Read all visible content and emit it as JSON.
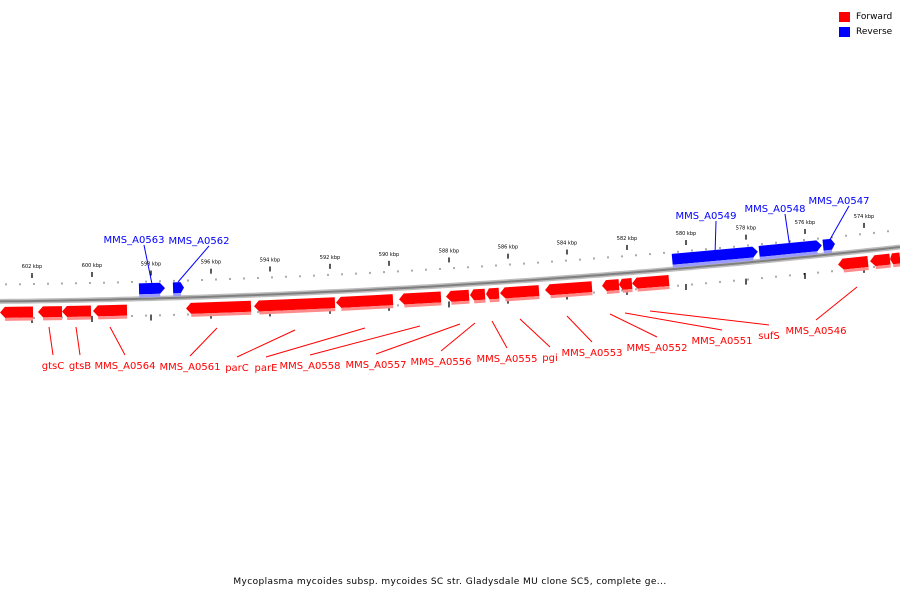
{
  "legend": {
    "items": [
      {
        "label": "Forward",
        "color": "#ff0000"
      },
      {
        "label": "Reverse",
        "color": "#0000ff"
      }
    ]
  },
  "caption": "Mycoplasma mycoides subsp. mycoides SC str. Gladysdale MU clone SC5, complete ge...",
  "colors": {
    "forward": "#ff0000",
    "reverse": "#0000ff",
    "backbone": "#808080"
  },
  "ruler": {
    "unit": "kbp",
    "labels": [
      "602 kbp",
      "600 kbp",
      "598 kbp",
      "596 kbp",
      "594 kbp",
      "592 kbp",
      "590 kbp",
      "588 kbp",
      "586 kbp",
      "584 kbp",
      "582 kbp",
      "580 kbp",
      "578 kbp",
      "576 kbp",
      "574 kbp"
    ]
  },
  "genes": {
    "forward": [
      "gtsC",
      "gtsB",
      "MMS_A0564",
      "MMS_A0561",
      "parC",
      "parE",
      "MMS_A0558",
      "MMS_A0557",
      "MMS_A0556",
      "MMS_A0555",
      "pgi",
      "MMS_A0553",
      "MMS_A0552",
      "MMS_A0551",
      "sufS",
      "MMS_A0546"
    ],
    "reverse": [
      "MMS_A0563",
      "MMS_A0562",
      "MMS_A0549",
      "MMS_A0548",
      "MMS_A0547"
    ]
  }
}
